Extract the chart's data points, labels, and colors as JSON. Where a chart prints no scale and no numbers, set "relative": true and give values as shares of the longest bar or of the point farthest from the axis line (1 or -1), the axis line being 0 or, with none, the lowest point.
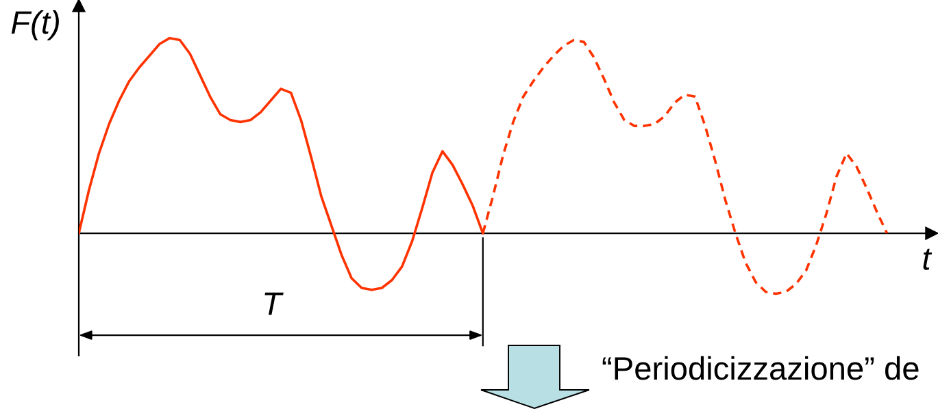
{
  "chart_data": {
    "type": "line",
    "relative": true,
    "ylabel": "F(t)",
    "xlabel": "t",
    "categories": [
      null,
      null,
      null,
      null,
      null,
      null,
      null,
      null,
      null,
      null,
      null,
      null,
      null,
      null,
      null,
      null,
      null,
      null,
      null,
      null,
      null,
      null,
      null,
      null,
      null,
      null,
      null,
      null,
      null,
      null,
      null,
      null,
      null,
      null,
      null,
      null,
      null,
      null,
      null,
      null,
      null,
      null,
      null,
      null,
      null,
      null,
      null,
      null,
      null,
      null,
      null,
      null,
      null,
      null,
      null,
      null,
      null,
      null,
      null,
      null,
      null,
      null,
      null,
      null,
      null,
      null,
      null,
      null,
      null,
      null,
      null,
      null,
      null,
      null,
      null,
      null,
      null,
      null,
      null,
      null,
      null
    ],
    "series": [
      {
        "color": "#ff3300",
        "line_style": "solid",
        "values": [
          0,
          0.22,
          0.41,
          0.56,
          0.68,
          0.78,
          0.85,
          0.91,
          0.97,
          1.0,
          0.99,
          0.92,
          0.81,
          0.7,
          0.61,
          0.58,
          0.57,
          0.58,
          0.62,
          0.68,
          0.74,
          0.72,
          0.58,
          0.39,
          0.19,
          0.04,
          -0.11,
          -0.23,
          -0.28,
          -0.29,
          -0.28,
          -0.24,
          -0.17,
          -0.04,
          0.13,
          0.31,
          0.42,
          0.35,
          0.25,
          0.14,
          0,
          null,
          null,
          null,
          null,
          null,
          null,
          null,
          null,
          null,
          null,
          null,
          null,
          null,
          null,
          null,
          null,
          null,
          null,
          null,
          null,
          null,
          null,
          null,
          null,
          null,
          null,
          null,
          null,
          null,
          null,
          null,
          null,
          null,
          null,
          null,
          null,
          null,
          null,
          null,
          null
        ]
      },
      {
        "color": "#ff3300",
        "line_style": "dashed",
        "values": [
          null,
          null,
          null,
          null,
          null,
          null,
          null,
          null,
          null,
          null,
          null,
          null,
          null,
          null,
          null,
          null,
          null,
          null,
          null,
          null,
          null,
          null,
          null,
          null,
          null,
          null,
          null,
          null,
          null,
          null,
          null,
          null,
          null,
          null,
          null,
          null,
          null,
          null,
          null,
          null,
          0,
          0.19,
          0.4,
          0.57,
          0.7,
          0.78,
          0.85,
          0.91,
          0.96,
          0.99,
          0.98,
          0.9,
          0.79,
          0.67,
          0.58,
          0.55,
          0.55,
          0.56,
          0.6,
          0.67,
          0.71,
          0.7,
          0.55,
          0.37,
          0.17,
          0,
          -0.15,
          -0.25,
          -0.3,
          -0.31,
          -0.3,
          -0.26,
          -0.19,
          -0.06,
          0.1,
          0.29,
          0.41,
          0.34,
          0.23,
          0.11,
          0
        ]
      }
    ],
    "annotations": [
      "T",
      "“Periodicizzazione” de"
    ]
  }
}
